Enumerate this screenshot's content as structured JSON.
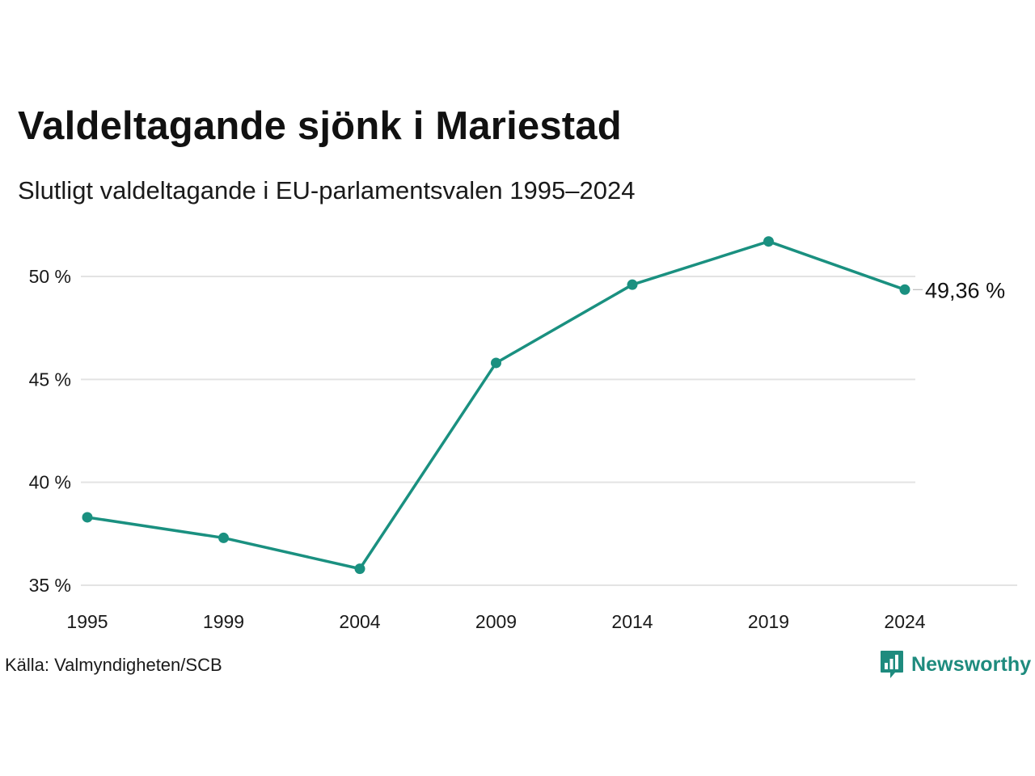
{
  "title": "Valdeltagande sjönk i Mariestad",
  "subtitle": "Slutligt valdeltagande i EU-parlamentsvalen 1995–2024",
  "source": "Källa: Valmyndigheten/SCB",
  "brand": {
    "name": "Newsworthy",
    "logo_icon": "newsworthy-bar-chart-icon",
    "color": "#1e8b7e"
  },
  "chart_data": {
    "type": "line",
    "x": [
      1995,
      1999,
      2004,
      2009,
      2014,
      2019,
      2024
    ],
    "categories": [
      "1995",
      "1999",
      "2004",
      "2009",
      "2014",
      "2019",
      "2024"
    ],
    "series": [
      {
        "values": [
          38.3,
          37.3,
          35.8,
          45.8,
          49.6,
          51.7,
          49.36
        ],
        "color": "#1a9080"
      }
    ],
    "ylim": [
      35,
      52.5
    ],
    "yticks": [
      35,
      40,
      45,
      50
    ],
    "ytick_labels": [
      "35 %",
      "40 %",
      "45 %",
      "50 %"
    ],
    "end_label": "49,36 %",
    "grid": true,
    "legend": "none",
    "colors": {
      "line": "#1a9080",
      "grid": "#e3e3e3",
      "axis_text": "#1a1a1a"
    }
  }
}
